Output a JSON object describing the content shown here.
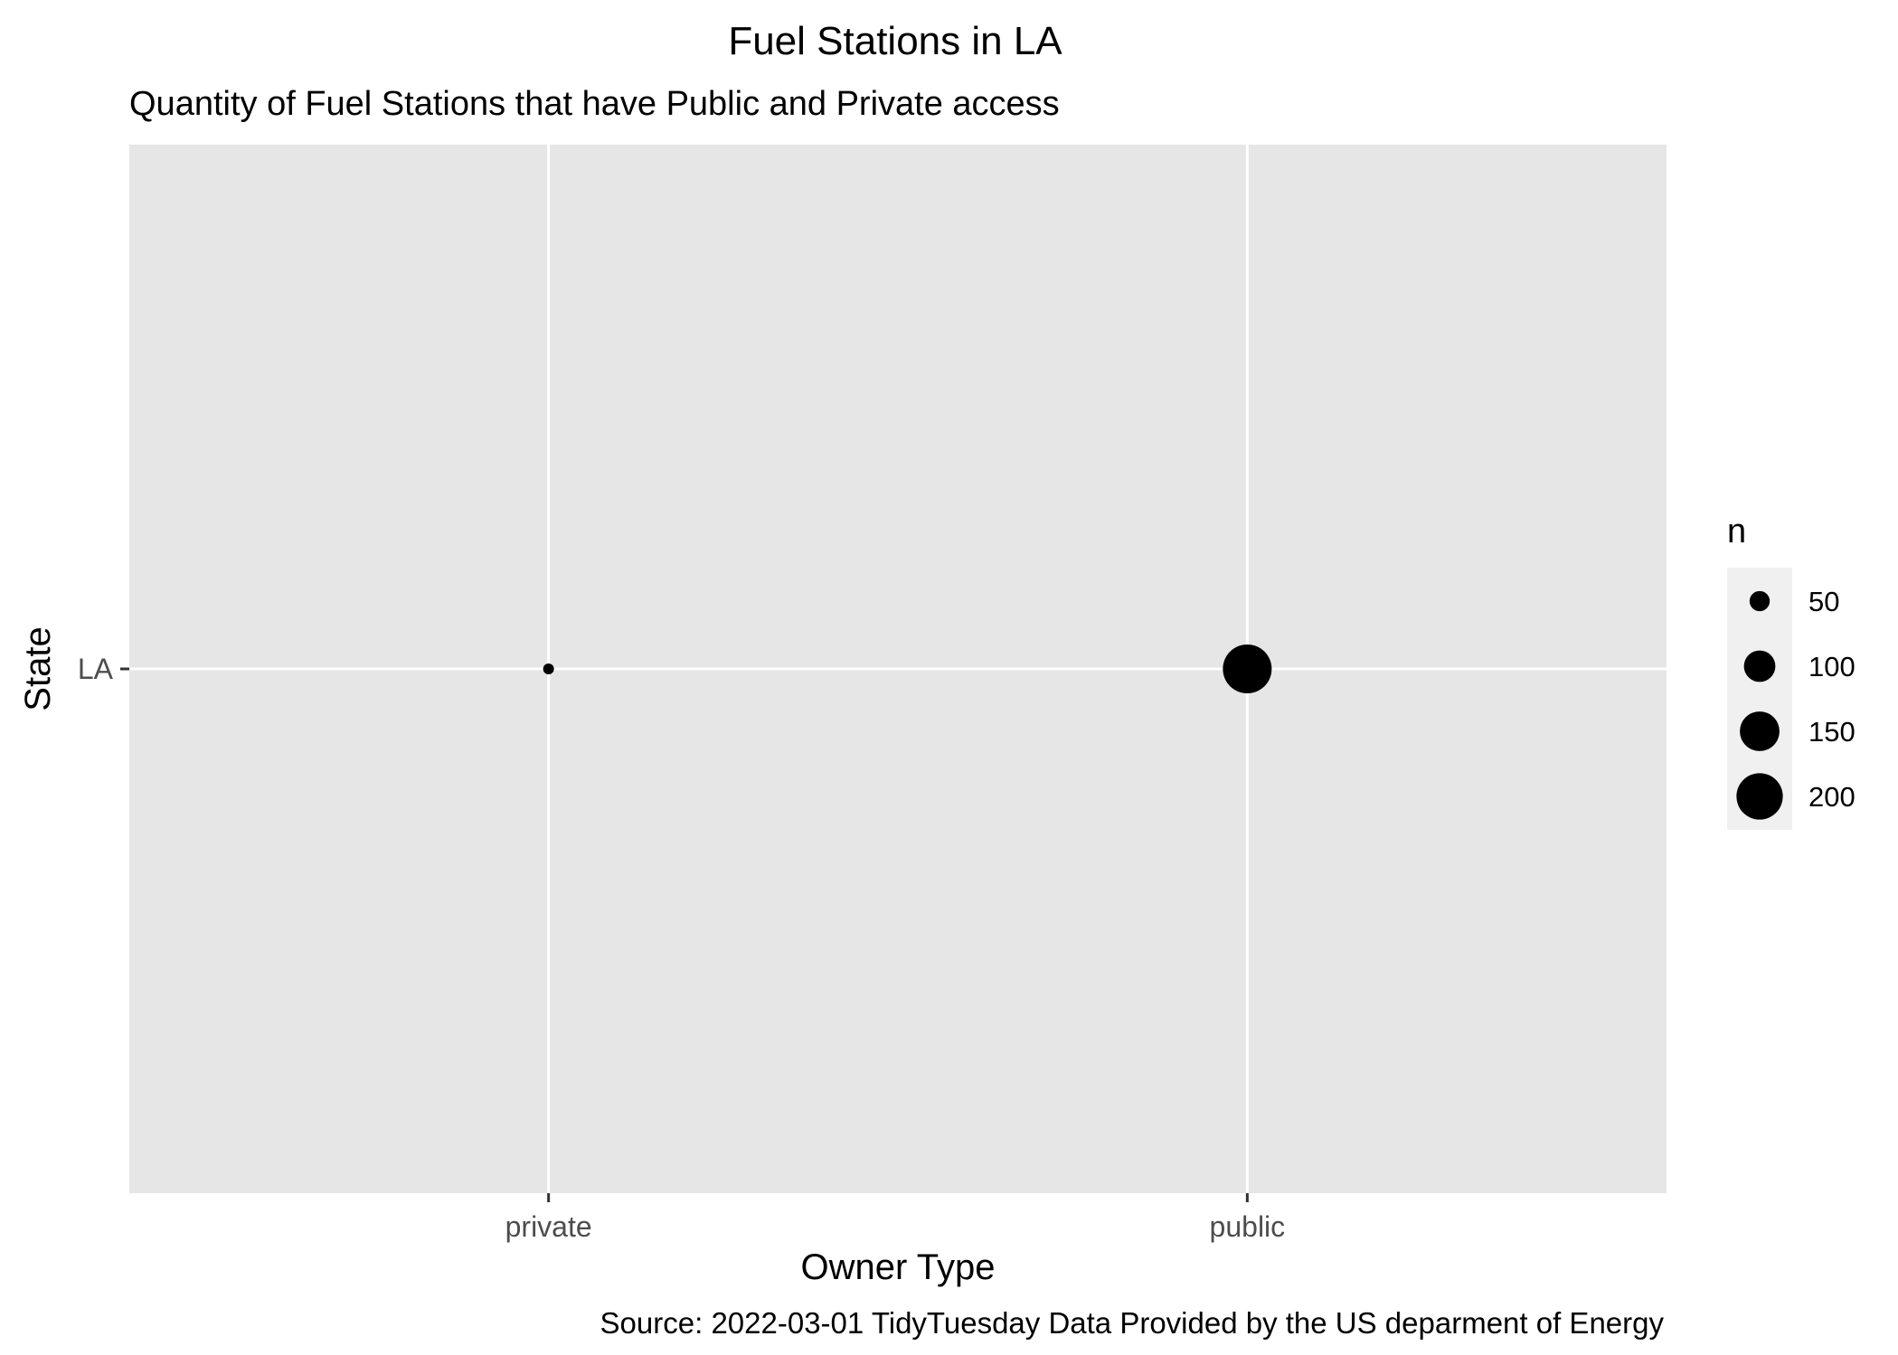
{
  "chart_data": {
    "type": "scatter",
    "title": "Fuel Stations in LA",
    "subtitle": "Quantity of Fuel Stations that have Public and Private access",
    "caption": "Source: 2022-03-01 TidyTuesday  Data Provided by the US deparment of Energy",
    "xlabel": "Owner Type",
    "ylabel": "State",
    "x_categories": [
      "private",
      "public"
    ],
    "y_categories": [
      "LA"
    ],
    "points": [
      {
        "x": "private",
        "y": "LA",
        "n": 25
      },
      {
        "x": "public",
        "y": "LA",
        "n": 220
      }
    ],
    "size_legend": {
      "title": "n",
      "breaks": [
        50,
        100,
        150,
        200
      ],
      "labels": [
        "50",
        "100",
        "150",
        "200"
      ]
    },
    "size_range": [
      25,
      220
    ],
    "grid": true,
    "legend_position": "right",
    "colors": {
      "panel": "#e6e6e6",
      "grid": "#ffffff",
      "point": "#000000",
      "legend_key": "#f0f0f0",
      "axis_text": "#4d4d4d"
    }
  }
}
